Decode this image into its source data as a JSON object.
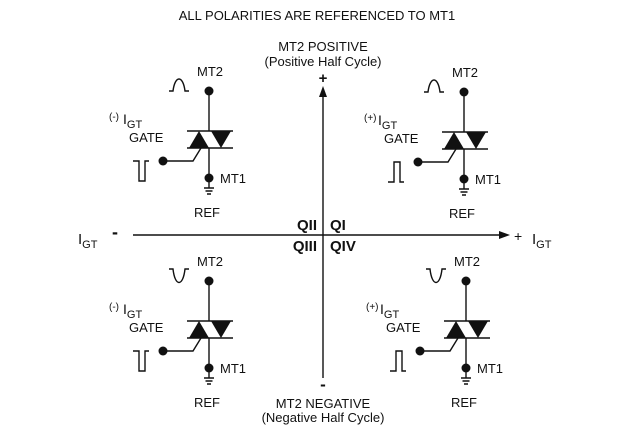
{
  "title": "ALL POLARITIES ARE REFERENCED TO MT1",
  "top_label": {
    "line1": "MT2 POSITIVE",
    "line2": "(Positive Half Cycle)",
    "sign": "+"
  },
  "bottom_label": {
    "line1": "MT2 NEGATIVE",
    "line2": "(Negative Half Cycle)",
    "sign": "-"
  },
  "x_axis": {
    "left_label": "I",
    "left_sub": "GT",
    "left_sign": "-",
    "right_sign": "+",
    "right_label": "I",
    "right_sub": "GT"
  },
  "quadrants": {
    "q1": "QI",
    "q2": "QII",
    "q3": "QIII",
    "q4": "QIV"
  },
  "circuits": [
    {
      "id": "q2",
      "gate_sign": "(-)",
      "igt": "I",
      "igt_sub": "GT",
      "gate": "GATE",
      "mt2": "MT2",
      "mt1": "MT1",
      "ref": "REF",
      "mt2_wave": "positive",
      "gate_pulse": "negative"
    },
    {
      "id": "q1",
      "gate_sign": "(+)",
      "igt": "I",
      "igt_sub": "GT",
      "gate": "GATE",
      "mt2": "MT2",
      "mt1": "MT1",
      "ref": "REF",
      "mt2_wave": "positive",
      "gate_pulse": "positive"
    },
    {
      "id": "q3",
      "gate_sign": "(-)",
      "igt": "I",
      "igt_sub": "GT",
      "gate": "GATE",
      "mt2": "MT2",
      "mt1": "MT1",
      "ref": "REF",
      "mt2_wave": "negative",
      "gate_pulse": "negative"
    },
    {
      "id": "q4",
      "gate_sign": "(+)",
      "igt": "I",
      "igt_sub": "GT",
      "gate": "GATE",
      "mt2": "MT2",
      "mt1": "MT1",
      "ref": "REF",
      "mt2_wave": "negative",
      "gate_pulse": "positive"
    }
  ]
}
